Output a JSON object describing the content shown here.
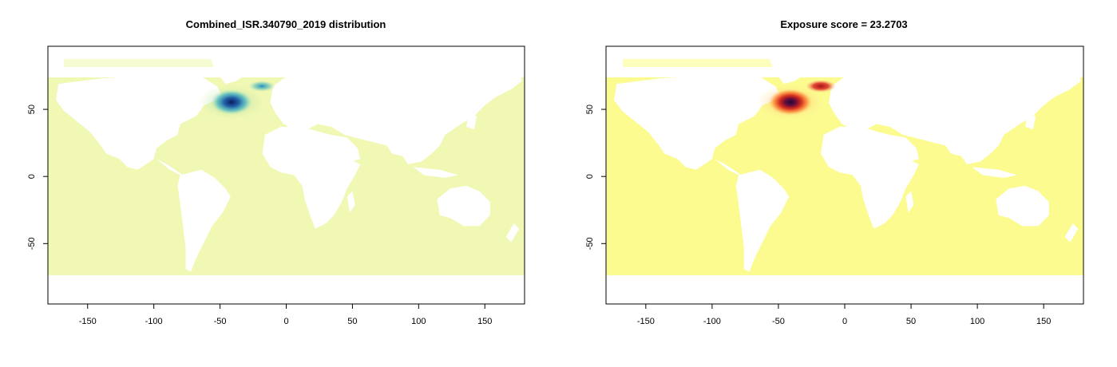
{
  "chart_data": [
    {
      "type": "heatmap",
      "title": "Combined_ISR.340790_2019 distribution",
      "xlabel": "",
      "ylabel": "",
      "xlim": [
        -180,
        180
      ],
      "ylim": [
        -95,
        97
      ],
      "xticks": [
        -150,
        -100,
        -50,
        0,
        50,
        100,
        150
      ],
      "yticks": [
        -50,
        0,
        50
      ],
      "grid": false,
      "legend": "none",
      "ocean_color": "#f0f8b4",
      "land_color": "#ffffff",
      "hotspots": [
        {
          "lon": -42,
          "lat": 55,
          "intensity": 1.0,
          "color_peak": "#081d58"
        },
        {
          "lon": -18,
          "lat": 67,
          "intensity": 0.55,
          "color_peak": "#1d91c0"
        }
      ]
    },
    {
      "type": "heatmap",
      "title": "Exposure score = 23.2703",
      "xlabel": "",
      "ylabel": "",
      "xlim": [
        -180,
        180
      ],
      "ylim": [
        -95,
        97
      ],
      "xticks": [
        -150,
        -100,
        -50,
        0,
        50,
        100,
        150
      ],
      "yticks": [
        -50,
        0,
        50
      ],
      "grid": false,
      "legend": "none",
      "ocean_color": "#fbfb8f",
      "land_color": "#ffffff",
      "hotspots": [
        {
          "lon": -42,
          "lat": 55,
          "intensity": 1.0,
          "color_peak": "#1a0a3a"
        },
        {
          "lon": -18,
          "lat": 67,
          "intensity": 0.7,
          "color_peak": "#a4161a"
        }
      ]
    }
  ]
}
